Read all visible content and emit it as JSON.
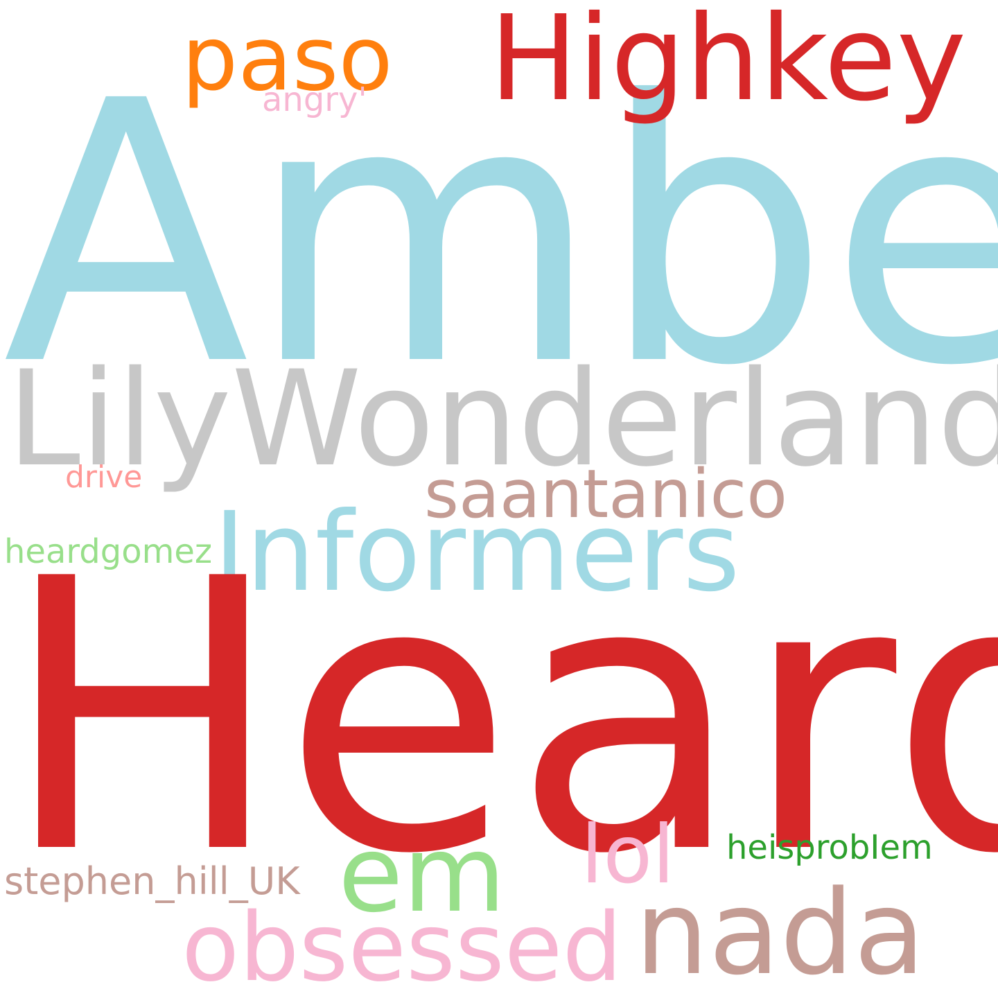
{
  "words": {
    "amber": {
      "text": "Amber",
      "color": "#a0d9e4"
    },
    "heard": {
      "text": "Heard",
      "color": "#d62728"
    },
    "lily": {
      "text": "LilyWonderland",
      "color": "#c7c7c7"
    },
    "highkey": {
      "text": "Highkey",
      "color": "#d62728"
    },
    "paso": {
      "text": "paso",
      "color": "#ff7f0e"
    },
    "angry": {
      "text": "angry'",
      "color": "#f7b6d2"
    },
    "saantanico": {
      "text": "saantanico",
      "color": "#c49c94"
    },
    "informers": {
      "text": "Informers",
      "color": "#a0d9e4"
    },
    "drive": {
      "text": "drive",
      "color": "#ff9896"
    },
    "heardgomez": {
      "text": "heardgomez",
      "color": "#98df8a"
    },
    "em": {
      "text": "em",
      "color": "#98df8a"
    },
    "lol": {
      "text": "lol",
      "color": "#f7b6d2"
    },
    "heisproblem": {
      "text": "heisprobIem",
      "color": "#2ca02c"
    },
    "stephen": {
      "text": "stephen_hill_UK",
      "color": "#c49c94"
    },
    "obsessed": {
      "text": "obsessed",
      "color": "#f7b6d2"
    },
    "nada": {
      "text": "nada",
      "color": "#c49c94"
    }
  }
}
